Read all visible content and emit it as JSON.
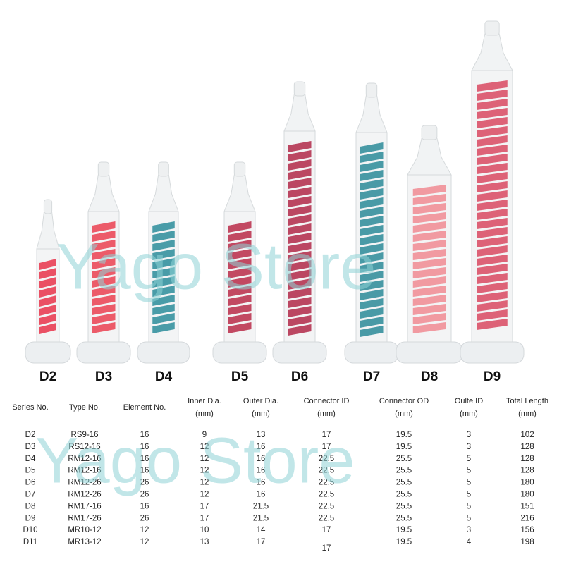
{
  "products": [
    "D2",
    "D3",
    "D4",
    "D5",
    "D6",
    "D7",
    "D8",
    "D9"
  ],
  "watermark": "Yago Store",
  "table": {
    "headers": [
      [
        "Series No."
      ],
      [
        "Type No."
      ],
      [
        "Element No."
      ],
      [
        "Inner Dia.",
        "(mm)"
      ],
      [
        "Outer Dia.",
        "(mm)"
      ],
      [
        "Connector ID",
        "(mm)"
      ],
      [
        "Connector OD",
        "(mm)"
      ],
      [
        "Oulte ID",
        "(mm)"
      ],
      [
        "Total Length",
        "(mm)"
      ]
    ],
    "rows": [
      [
        "D2",
        "RS9-16",
        16,
        9,
        13,
        17,
        19.5,
        3,
        102
      ],
      [
        "D3",
        "RS12-16",
        16,
        12,
        16,
        17,
        19.5,
        3,
        128
      ],
      [
        "D4",
        "RM12-16",
        16,
        12,
        16,
        22.5,
        25.5,
        5,
        128
      ],
      [
        "D5",
        "RM12-16",
        16,
        12,
        16,
        22.5,
        25.5,
        5,
        128
      ],
      [
        "D6",
        "RM12-26",
        26,
        12,
        16,
        22.5,
        25.5,
        5,
        180
      ],
      [
        "D7",
        "RM12-26",
        26,
        12,
        16,
        22.5,
        25.5,
        5,
        180
      ],
      [
        "D8",
        "RM17-16",
        16,
        17,
        21.5,
        22.5,
        25.5,
        5,
        151
      ],
      [
        "D9",
        "RM17-26",
        26,
        17,
        21.5,
        22.5,
        25.5,
        5,
        216
      ],
      [
        "D10",
        "MR10-12",
        12,
        10,
        14,
        17,
        19.5,
        3,
        156
      ],
      [
        "D11",
        "MR13-12",
        12,
        13,
        17,
        17,
        19.5,
        4,
        198
      ]
    ]
  }
}
